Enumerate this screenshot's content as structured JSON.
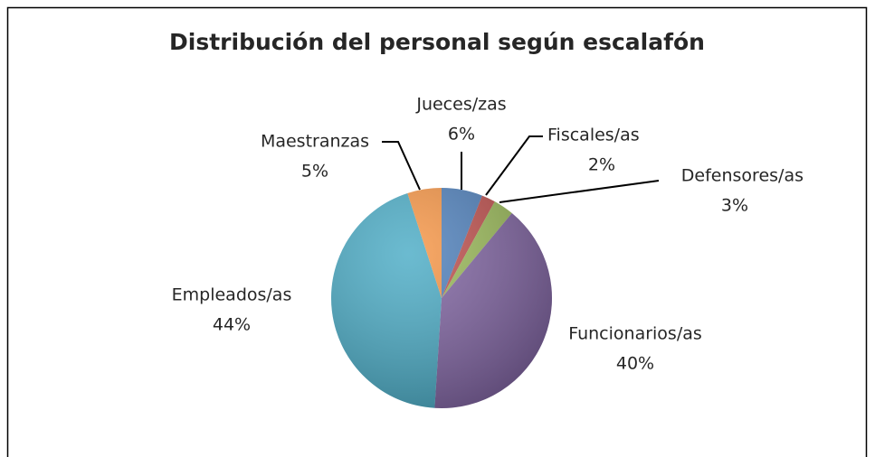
{
  "chart_data": {
    "type": "pie",
    "title": "Distribución del personal según escalafón",
    "categories": [
      "Jueces/zas",
      "Fiscales/as",
      "Defensores/as",
      "Funcionarios/as",
      "Empleados/as",
      "Maestranzas"
    ],
    "values": [
      6,
      2,
      3,
      40,
      44,
      5
    ],
    "value_labels": [
      "6%",
      "2%",
      "3%",
      "40%",
      "44%",
      "5%"
    ],
    "colors": [
      "#4f81bd",
      "#c0504d",
      "#9bbb59",
      "#8064a2",
      "#4bacc6",
      "#f79646"
    ]
  }
}
